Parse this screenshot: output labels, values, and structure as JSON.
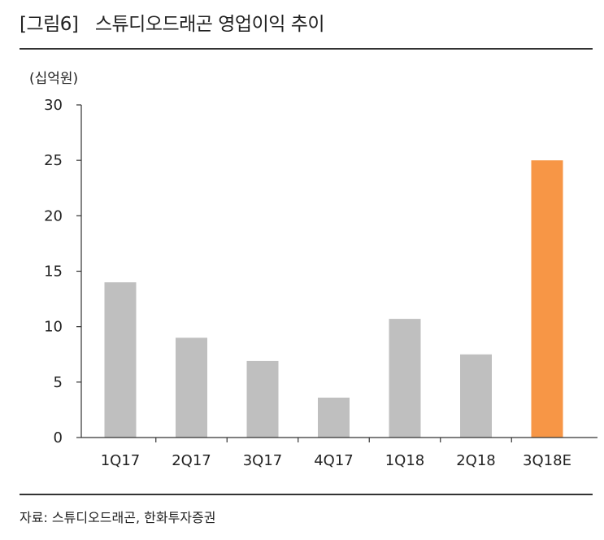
{
  "header": {
    "figure_label": "[그림6]",
    "title": "스튜디오드래곤 영업이익 추이"
  },
  "source": "자료: 스튜디오드래곤, 한화투자증권",
  "colors": {
    "bar": "#bfbfbf",
    "highlight": "#f79646",
    "axis": "#333333"
  },
  "chart_data": {
    "type": "bar",
    "title": "스튜디오드래곤 영업이익 추이",
    "unit_label": "(십억원)",
    "categories": [
      "1Q17",
      "2Q17",
      "3Q17",
      "4Q17",
      "1Q18",
      "2Q18",
      "3Q18E"
    ],
    "values": [
      14.0,
      9.0,
      6.9,
      3.6,
      10.7,
      7.5,
      25.0
    ],
    "highlight_index": 6,
    "ylim": [
      0,
      30
    ],
    "yticks": [
      0,
      5,
      10,
      15,
      20,
      25,
      30
    ],
    "grid": false,
    "legend": "none"
  }
}
